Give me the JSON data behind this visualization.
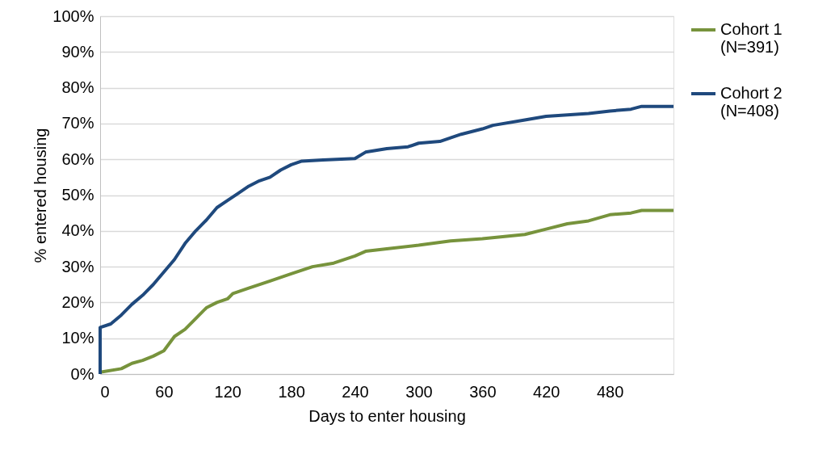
{
  "chart_data": {
    "type": "line",
    "xlabel": "Days to enter housing",
    "ylabel": "% entered housing",
    "xlim": [
      0,
      540
    ],
    "xticks": [
      0,
      60,
      120,
      180,
      240,
      300,
      360,
      420,
      480
    ],
    "ylim": [
      0,
      100
    ],
    "yticks": [
      {
        "value": 0,
        "label": "0%"
      },
      {
        "value": 10,
        "label": "10%"
      },
      {
        "value": 20,
        "label": "20%"
      },
      {
        "value": 30,
        "label": "30%"
      },
      {
        "value": 40,
        "label": "40%"
      },
      {
        "value": 50,
        "label": "50%"
      },
      {
        "value": 60,
        "label": "60%"
      },
      {
        "value": 70,
        "label": "70%"
      },
      {
        "value": 80,
        "label": "80%"
      },
      {
        "value": 90,
        "label": "90%"
      },
      {
        "value": 100,
        "label": "100%"
      }
    ],
    "grid": "y",
    "legend": "right",
    "marker": "none",
    "line_style": "solid",
    "series": [
      {
        "name": "Cohort 1 (N=391)",
        "color": "#77933c",
        "x": [
          0,
          20,
          30,
          40,
          50,
          60,
          70,
          80,
          90,
          100,
          110,
          120,
          125,
          140,
          160,
          180,
          200,
          220,
          240,
          250,
          270,
          300,
          330,
          360,
          400,
          420,
          440,
          460,
          480,
          500,
          510,
          540
        ],
        "values": [
          0.5,
          1.5,
          3,
          3.8,
          5,
          6.5,
          10.5,
          12.5,
          15.5,
          18.5,
          20,
          21,
          22.5,
          24,
          26,
          28,
          30,
          31,
          33,
          34.3,
          35,
          36,
          37.2,
          37.8,
          39,
          40.5,
          42,
          42.8,
          44.5,
          45,
          45.7,
          45.7
        ]
      },
      {
        "name": "Cohort 2 (N=408)",
        "color": "#1f497d",
        "x": [
          0,
          0,
          10,
          20,
          30,
          40,
          50,
          60,
          70,
          80,
          90,
          100,
          110,
          120,
          130,
          140,
          150,
          160,
          170,
          180,
          190,
          210,
          240,
          250,
          270,
          290,
          300,
          320,
          340,
          360,
          370,
          400,
          420,
          460,
          480,
          500,
          510,
          540
        ],
        "values": [
          0,
          13,
          14,
          16.5,
          19.5,
          22,
          25,
          28.5,
          32,
          36.5,
          40,
          43,
          46.5,
          48.5,
          50.5,
          52.5,
          54,
          55,
          57,
          58.5,
          59.5,
          59.8,
          60.2,
          62,
          63,
          63.5,
          64.5,
          65,
          67,
          68.5,
          69.5,
          71,
          72,
          72.8,
          73.5,
          74,
          74.8,
          74.8
        ]
      }
    ]
  }
}
